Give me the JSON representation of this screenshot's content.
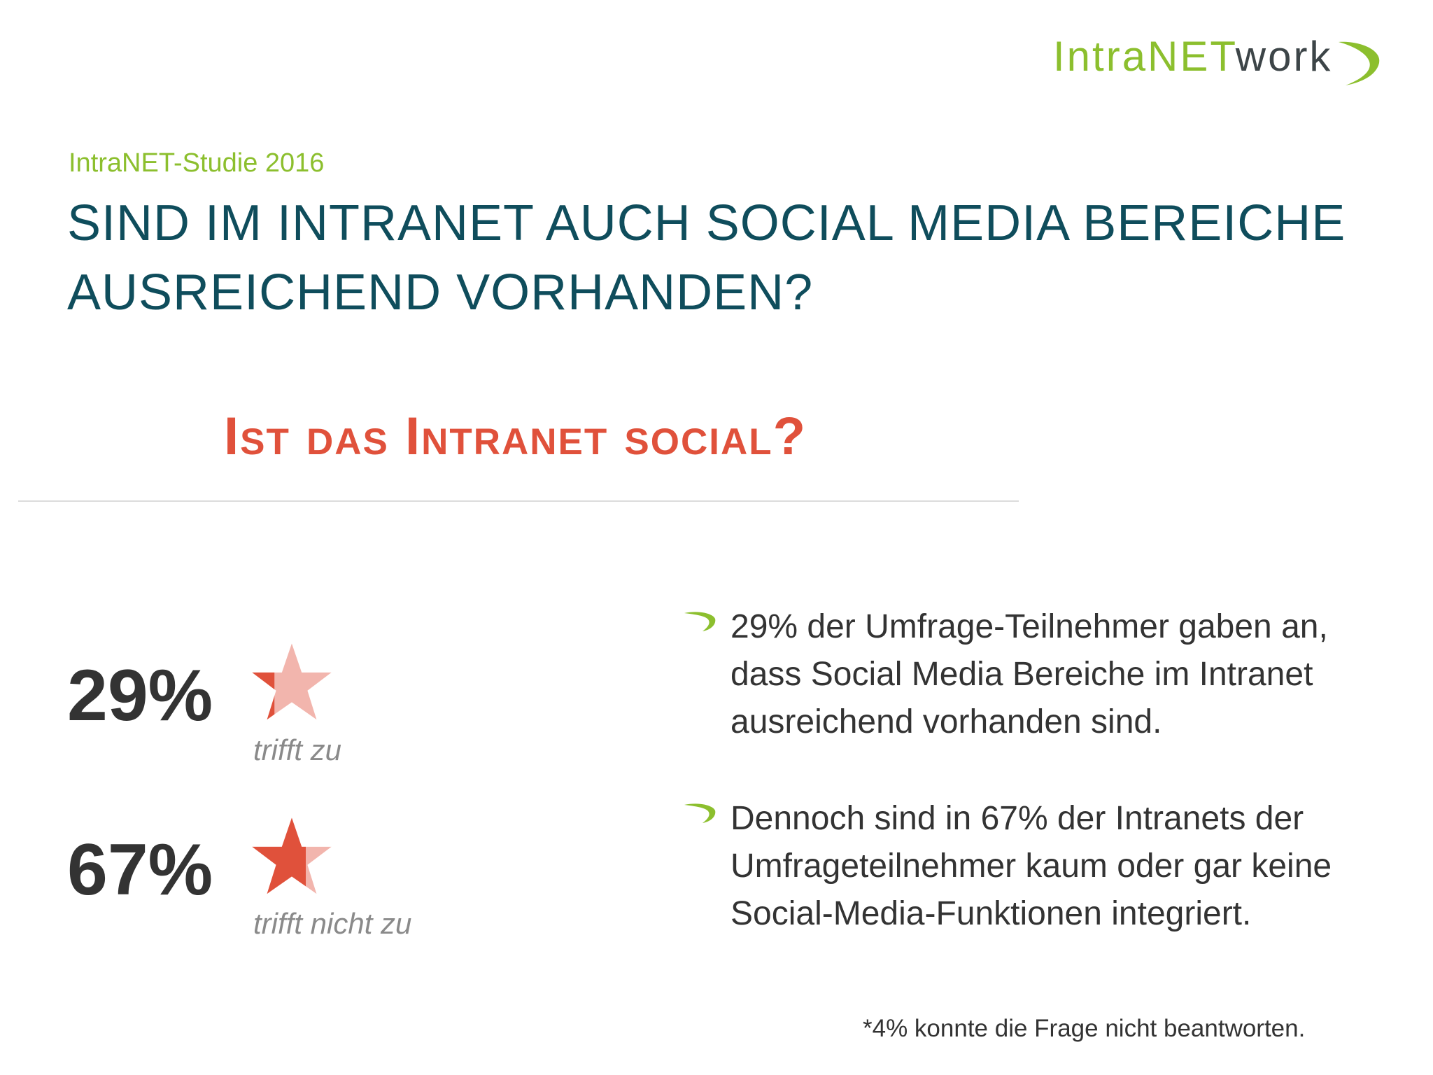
{
  "logo": {
    "part1": "IntraNET",
    "part2": "work"
  },
  "subtitle": "IntraNET-Studie 2016",
  "title_lines": [
    "SIND IM INTRANET AUCH SOCIAL MEDIA BEREICHE",
    "AUSREICHEND VORHANDEN?"
  ],
  "sub_heading": "Ist das Intranet social?",
  "stats": [
    {
      "value": "29%",
      "label": "trifft zu",
      "share": 0.29
    },
    {
      "value": "67%",
      "label": "trifft nicht zu",
      "share": 0.67
    }
  ],
  "bullets": [
    "29% der Umfrage-Teilnehmer gaben an, dass Social Media Bereiche im Intranet ausreichend vorhanden sind.",
    "Dennoch sind in 67% der Intranets der Umfrageteilnehmer kaum oder gar keine Social-Media-Funktionen integriert."
  ],
  "footnote": "*4% konnte die Frage nicht beantworten.",
  "colors": {
    "accent_green": "#8cbf2e",
    "title_teal": "#0f4d5c",
    "heading_red": "#e0513b",
    "star_light": "#f2b5ad",
    "star_dark": "#e0513b"
  }
}
